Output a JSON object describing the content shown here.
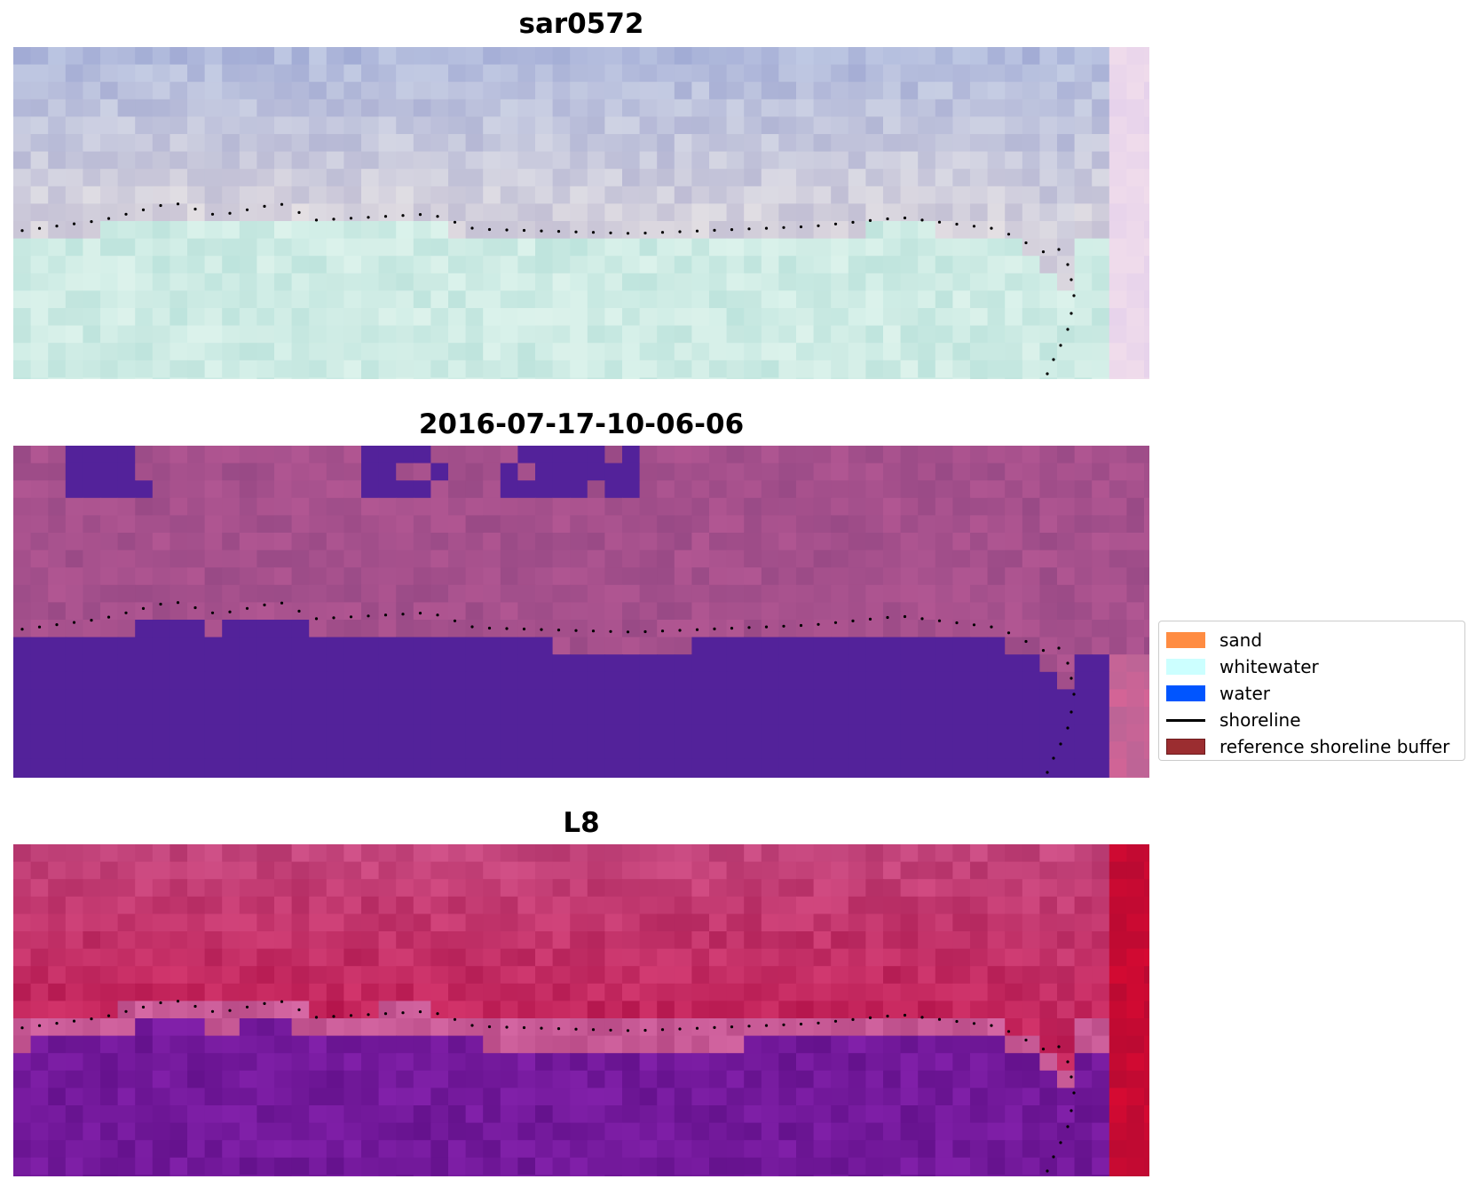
{
  "panels": [
    {
      "title": "sar0572",
      "style": "sar"
    },
    {
      "title": "2016-07-17-10-06-06",
      "style": "class"
    },
    {
      "title": "L8",
      "style": "l8"
    }
  ],
  "legend": [
    {
      "label": "sand",
      "color": "#ff8c42",
      "kind": "patch"
    },
    {
      "label": "whitewater",
      "color": "#ccffff",
      "kind": "patch"
    },
    {
      "label": "water",
      "color": "#0055ff",
      "kind": "patch"
    },
    {
      "label": "shoreline",
      "color": "#000000",
      "kind": "line"
    },
    {
      "label": "reference shoreline buffer",
      "color": "#9b2d30",
      "kind": "patch",
      "edge": "#6b1a1c"
    }
  ],
  "colors": {
    "classified_water": "#53229a",
    "shoreline_dots": "#000000"
  }
}
